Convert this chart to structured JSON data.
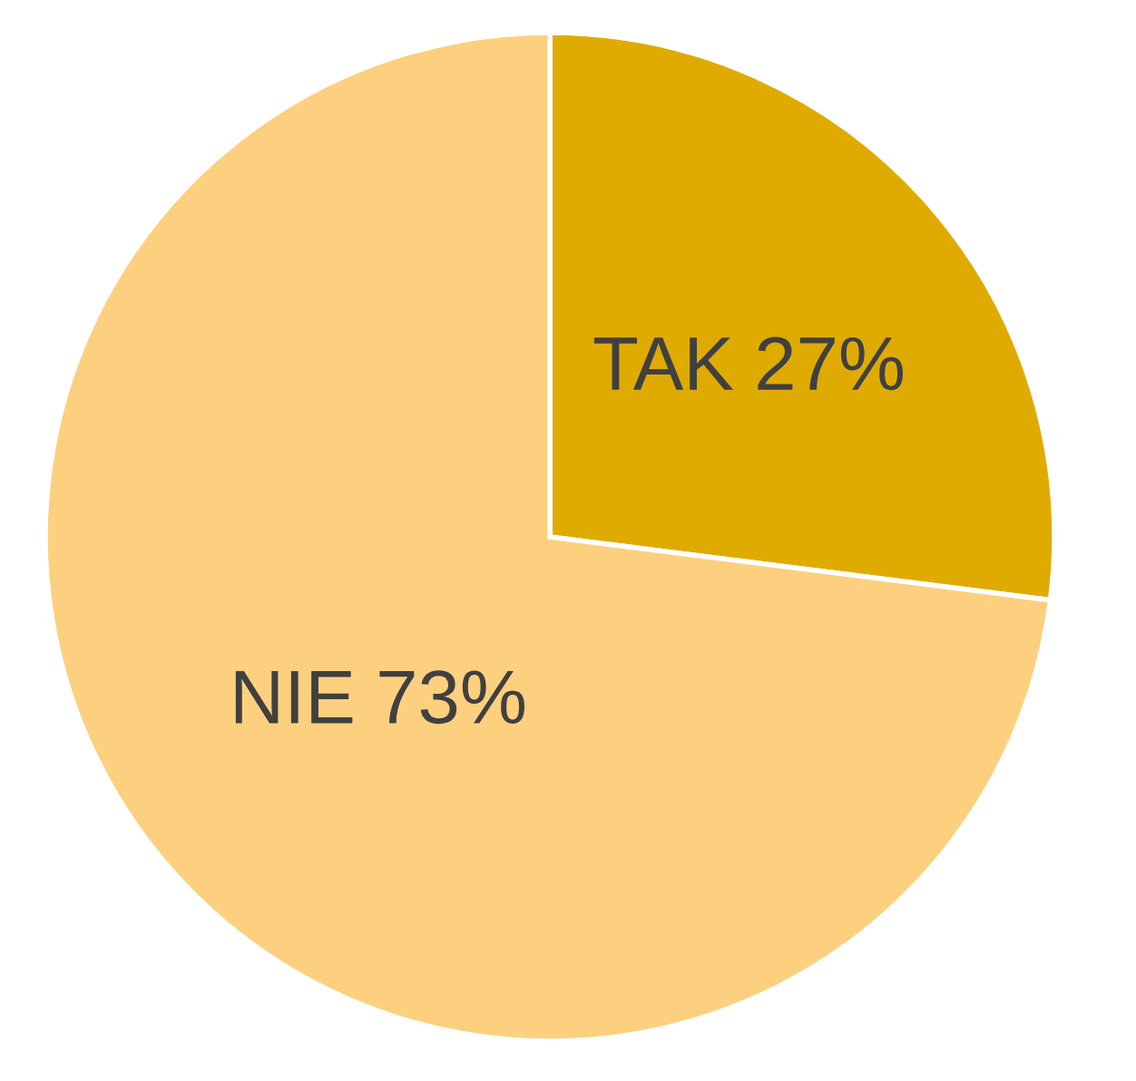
{
  "chart_data": {
    "type": "pie",
    "categories": [
      "TAK",
      "NIE"
    ],
    "values": [
      27,
      73
    ],
    "colors": [
      "#e0ab00",
      "#fdd07f"
    ],
    "value_labels": [
      "27%",
      "73%"
    ],
    "legend": false
  }
}
